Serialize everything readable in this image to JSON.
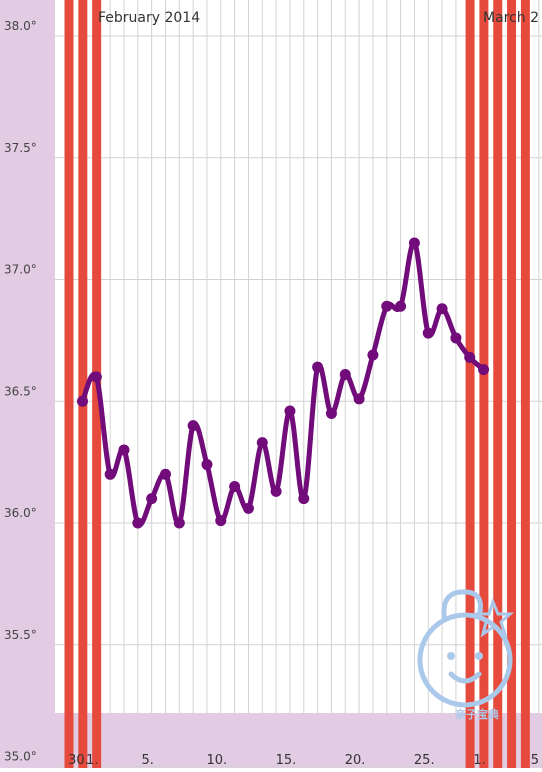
{
  "chart_data": {
    "type": "line",
    "months": [
      "February 2014",
      "March 2"
    ],
    "y_ticks": [
      "38.0°",
      "37.5°",
      "37.0°",
      "36.5°",
      "36.0°",
      "35.5°",
      "35.0°"
    ],
    "ylim": [
      35.0,
      38.1
    ],
    "x_ticks": [
      {
        "day": 0,
        "label": "30."
      },
      {
        "day": 1,
        "label": "1."
      },
      {
        "day": 5,
        "label": "5."
      },
      {
        "day": 10,
        "label": "10."
      },
      {
        "day": 15,
        "label": "15."
      },
      {
        "day": 20,
        "label": "20."
      },
      {
        "day": 25,
        "label": "25."
      },
      {
        "day": 29,
        "label": "1."
      },
      {
        "day": 33,
        "label": "5"
      }
    ],
    "highlighted_days": [
      0,
      1,
      2,
      29,
      30,
      31,
      32,
      33
    ],
    "x": [
      0,
      1,
      2,
      3,
      4,
      5,
      6,
      7,
      8,
      9,
      10,
      11,
      12,
      13,
      14,
      15,
      16,
      17,
      18,
      19,
      20,
      21,
      22,
      23,
      24,
      25,
      26,
      27,
      28,
      29
    ],
    "values": [
      36.5,
      36.6,
      36.2,
      36.3,
      36.0,
      36.1,
      36.2,
      36.0,
      36.4,
      36.24,
      36.01,
      36.15,
      36.06,
      36.33,
      36.13,
      36.46,
      36.1,
      36.64,
      36.45,
      36.61,
      36.51,
      36.69,
      36.89,
      36.89,
      37.15,
      36.78,
      36.88,
      36.76,
      36.68,
      36.63
    ],
    "grid": true,
    "colors": {
      "line": "#710c7a",
      "highlight": "#e64a3c",
      "side_panel": "#e1cce4",
      "grid": "#d2d2d2",
      "watermark": "#a9c8ea"
    },
    "watermark_icon": "baby-face-logo-icon",
    "watermark_text": "亲子宝典"
  }
}
